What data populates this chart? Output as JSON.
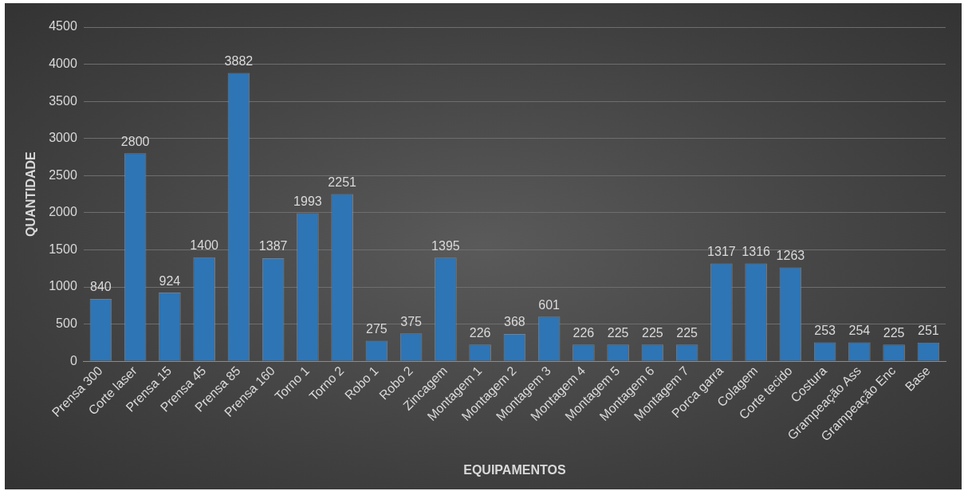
{
  "chart_data": {
    "type": "bar",
    "xlabel": "EQUIPAMENTOS",
    "ylabel": "QUANTIDADE",
    "categories": [
      "Prensa 300",
      "Corte laser",
      "Prensa 15",
      "Prensa 45",
      "Prensa 85",
      "Prensa 160",
      "Torno 1",
      "Torno 2",
      "Robo 1",
      "Robo 2",
      "Zincagem",
      "Montagem 1",
      "Montagem 2",
      "Montagem 3",
      "Montagem 4",
      "Montagem 5",
      "Montagem 6",
      "Montagem 7",
      "Porca garra",
      "Colagem",
      "Corte tecido",
      "Costura",
      "Grampeação Ass",
      "Grampeação Enc",
      "Base"
    ],
    "values": [
      840,
      2800,
      924,
      1400,
      3882,
      1387,
      1993,
      2251,
      275,
      375,
      1395,
      226,
      368,
      601,
      226,
      225,
      225,
      225,
      1317,
      1316,
      1263,
      253,
      254,
      225,
      251
    ],
    "color": "#2e75b6",
    "ylim": [
      0,
      4500
    ],
    "yticks": [
      0,
      500,
      1000,
      1500,
      2000,
      2500,
      3000,
      3500,
      4000,
      4500
    ],
    "grid": "y",
    "data_labels": true
  }
}
